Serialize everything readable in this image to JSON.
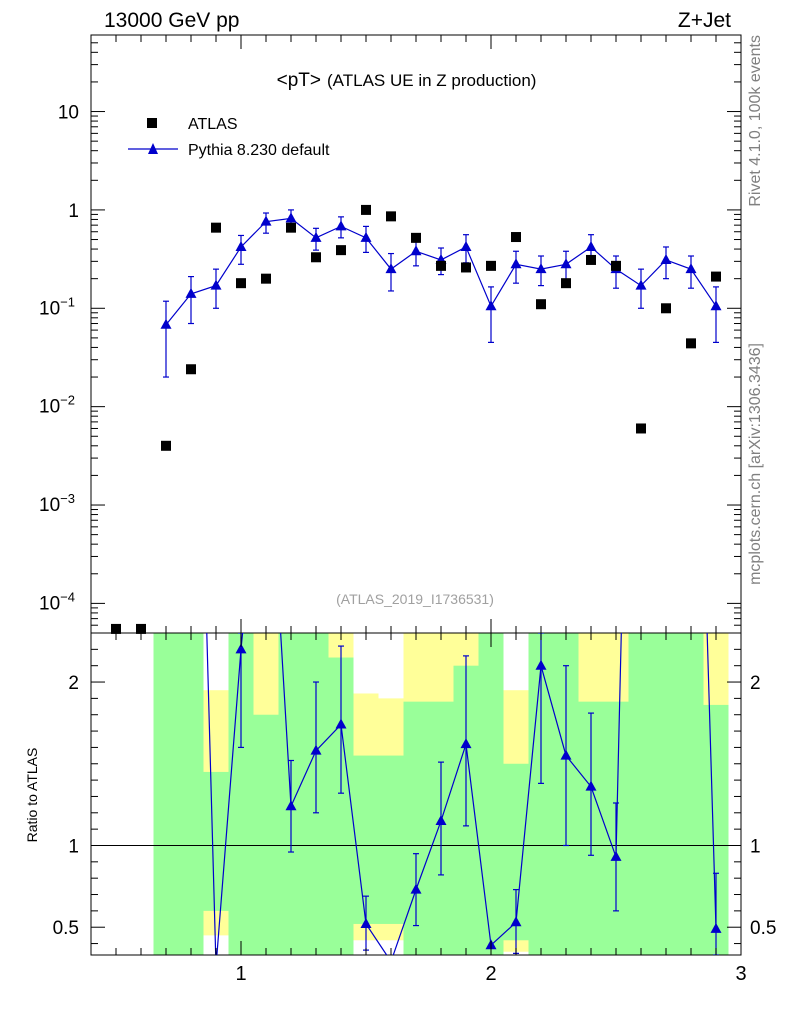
{
  "chart_data": {
    "type": "scatter",
    "header_left": "13000 GeV pp",
    "header_right": "Z+Jet",
    "title_main": "<pT>",
    "title_sub": "(ATLAS UE in Z production)",
    "analysis_id": "(ATLAS_2019_I1736531)",
    "side_label_top": "Rivet 4.1.0,  100k events",
    "side_label_bottom": "mcplots.cern.ch [arXiv:1306.3436]",
    "ratio_ylabel": "Ratio to ATLAS",
    "legend": {
      "data_label": "ATLAS",
      "mc_label": "Pythia 8.230 default",
      "placement": "top-left"
    },
    "main": {
      "yscale": "log",
      "ylim": [
        5e-05,
        60
      ],
      "yticks": [
        {
          "value": 10,
          "base": "10",
          "exp": ""
        },
        {
          "value": 1,
          "base": "1",
          "exp": ""
        },
        {
          "value": 0.1,
          "base": "10",
          "exp": "−1"
        },
        {
          "value": 0.01,
          "base": "10",
          "exp": "−2"
        },
        {
          "value": 0.001,
          "base": "10",
          "exp": "−3"
        },
        {
          "value": 0.0001,
          "base": "10",
          "exp": "−4"
        }
      ]
    },
    "xlim": [
      0.4,
      3.0
    ],
    "xticks": [
      {
        "value": 1,
        "label": "1"
      },
      {
        "value": 2,
        "label": "2"
      },
      {
        "value": 3,
        "label": "3"
      }
    ],
    "ratio": {
      "ylim": [
        0.33,
        2.3
      ],
      "yticks": [
        {
          "value": 0.5,
          "label": "0.5"
        },
        {
          "value": 1,
          "label": "1"
        },
        {
          "value": 2,
          "label": "2"
        }
      ],
      "reference": 1
    },
    "series": [
      {
        "name": "ATLAS",
        "x": [
          0.5,
          0.6,
          0.7,
          0.8,
          0.9,
          1.0,
          1.1,
          1.2,
          1.3,
          1.4,
          1.5,
          1.6,
          1.7,
          1.8,
          1.9,
          2.0,
          2.1,
          2.2,
          2.3,
          2.4,
          2.5,
          2.6,
          2.7,
          2.8,
          2.9
        ],
        "y": [
          5.5e-05,
          5.5e-05,
          0.004,
          0.024,
          0.66,
          0.18,
          0.2,
          0.66,
          0.33,
          0.39,
          1.0,
          0.86,
          0.52,
          0.27,
          0.26,
          0.27,
          0.53,
          0.11,
          0.18,
          0.31,
          0.27,
          0.006,
          0.1,
          0.044,
          0.21
        ]
      },
      {
        "name": "Pythia 8.230 default",
        "x": [
          0.7,
          0.8,
          0.9,
          1.0,
          1.1,
          1.2,
          1.3,
          1.4,
          1.5,
          1.6,
          1.7,
          1.8,
          1.9,
          2.0,
          2.1,
          2.2,
          2.3,
          2.4,
          2.5,
          2.6,
          2.7,
          2.8,
          2.9
        ],
        "y": [
          0.068,
          0.14,
          0.17,
          0.42,
          0.76,
          0.82,
          0.52,
          0.68,
          0.52,
          0.25,
          0.38,
          0.31,
          0.42,
          0.105,
          0.28,
          0.25,
          0.28,
          0.42,
          0.25,
          0.17,
          0.31,
          0.25,
          0.105
        ],
        "err_low": [
          0.048,
          0.07,
          0.07,
          0.14,
          0.18,
          0.18,
          0.13,
          0.16,
          0.15,
          0.1,
          0.11,
          0.09,
          0.13,
          0.06,
          0.1,
          0.08,
          0.09,
          0.13,
          0.09,
          0.07,
          0.11,
          0.09,
          0.06
        ],
        "err_high": [
          0.05,
          0.07,
          0.08,
          0.13,
          0.17,
          0.18,
          0.13,
          0.17,
          0.16,
          0.11,
          0.12,
          0.1,
          0.14,
          0.06,
          0.1,
          0.09,
          0.1,
          0.14,
          0.09,
          0.08,
          0.11,
          0.09,
          0.06
        ]
      }
    ],
    "ratio_series": {
      "name": "Pythia 8.230 default / ATLAS",
      "points": [
        {
          "x": 0.7,
          "y": 17
        },
        {
          "x": 0.8,
          "y": 5.8
        },
        {
          "x": 0.9,
          "y": 0.26
        },
        {
          "x": 1.0,
          "y": 2.2,
          "lo": 0.6,
          "hi": 0.6
        },
        {
          "x": 1.1,
          "y": 3.8
        },
        {
          "x": 1.2,
          "y": 1.24,
          "lo": 0.28,
          "hi": 0.28
        },
        {
          "x": 1.3,
          "y": 1.58,
          "lo": 0.38,
          "hi": 0.42
        },
        {
          "x": 1.4,
          "y": 1.74,
          "lo": 0.42,
          "hi": 0.48
        },
        {
          "x": 1.5,
          "y": 0.52,
          "lo": 0.16,
          "hi": 0.17
        },
        {
          "x": 1.6,
          "y": 0.29
        },
        {
          "x": 1.7,
          "y": 0.73,
          "lo": 0.22,
          "hi": 0.22
        },
        {
          "x": 1.8,
          "y": 1.15,
          "lo": 0.33,
          "hi": 0.36
        },
        {
          "x": 1.9,
          "y": 1.62,
          "lo": 0.5,
          "hi": 0.54
        },
        {
          "x": 2.0,
          "y": 0.39
        },
        {
          "x": 2.1,
          "y": 0.53,
          "lo": 0.19,
          "hi": 0.2
        },
        {
          "x": 2.2,
          "y": 2.1,
          "lo": 0.72,
          "hi": 0.8
        },
        {
          "x": 2.3,
          "y": 1.55,
          "lo": 0.55,
          "hi": 0.55
        },
        {
          "x": 2.4,
          "y": 1.36,
          "lo": 0.42,
          "hi": 0.45
        },
        {
          "x": 2.5,
          "y": 0.93,
          "lo": 0.33,
          "hi": 0.33
        },
        {
          "x": 2.6,
          "y": 28
        },
        {
          "x": 2.7,
          "y": 3.1
        },
        {
          "x": 2.8,
          "y": 5.6
        },
        {
          "x": 2.9,
          "y": 0.49,
          "lo": 0.33,
          "hi": 0.34
        }
      ]
    },
    "uncertainty_bands": {
      "bins": [
        {
          "lo": 0.65,
          "hi": 0.75,
          "green": [
            0.2,
            3.0
          ],
          "yellow": [
            0.2,
            3.0
          ]
        },
        {
          "lo": 0.75,
          "hi": 0.85,
          "green": [
            0.2,
            3.0
          ],
          "yellow": [
            0.2,
            3.0
          ]
        },
        {
          "lo": 0.85,
          "hi": 0.95,
          "green": [
            0.6,
            1.45
          ],
          "yellow": [
            0.45,
            1.95
          ]
        },
        {
          "lo": 0.95,
          "hi": 1.05,
          "green": [
            0.2,
            3.0
          ],
          "yellow": [
            0.2,
            3.0
          ]
        },
        {
          "lo": 1.05,
          "hi": 1.15,
          "green": [
            0.2,
            1.8
          ],
          "yellow": [
            0.2,
            3.0
          ]
        },
        {
          "lo": 1.15,
          "hi": 1.25,
          "green": [
            0.2,
            3.0
          ],
          "yellow": [
            0.2,
            3.0
          ]
        },
        {
          "lo": 1.25,
          "hi": 1.35,
          "green": [
            0.2,
            2.3
          ],
          "yellow": [
            0.2,
            3.0
          ]
        },
        {
          "lo": 1.35,
          "hi": 1.45,
          "green": [
            0.2,
            2.15
          ],
          "yellow": [
            0.2,
            3.0
          ]
        },
        {
          "lo": 1.45,
          "hi": 1.55,
          "green": [
            0.52,
            1.55
          ],
          "yellow": [
            0.42,
            1.93
          ]
        },
        {
          "lo": 1.55,
          "hi": 1.65,
          "green": [
            0.52,
            1.55
          ],
          "yellow": [
            0.42,
            1.9
          ]
        },
        {
          "lo": 1.65,
          "hi": 1.75,
          "green": [
            0.2,
            1.88
          ],
          "yellow": [
            0.2,
            3.0
          ]
        },
        {
          "lo": 1.75,
          "hi": 1.85,
          "green": [
            0.2,
            1.88
          ],
          "yellow": [
            0.2,
            3.0
          ]
        },
        {
          "lo": 1.85,
          "hi": 1.95,
          "green": [
            0.2,
            2.1
          ],
          "yellow": [
            0.2,
            3.0
          ]
        },
        {
          "lo": 1.95,
          "hi": 2.05,
          "green": [
            0.2,
            3.0
          ],
          "yellow": [
            0.2,
            3.0
          ]
        },
        {
          "lo": 2.05,
          "hi": 2.15,
          "green": [
            0.42,
            1.5
          ],
          "yellow": [
            0.35,
            1.95
          ]
        },
        {
          "lo": 2.15,
          "hi": 2.25,
          "green": [
            0.2,
            3.0
          ],
          "yellow": [
            0.2,
            3.0
          ]
        },
        {
          "lo": 2.25,
          "hi": 2.35,
          "green": [
            0.2,
            3.0
          ],
          "yellow": [
            0.2,
            3.0
          ]
        },
        {
          "lo": 2.35,
          "hi": 2.45,
          "green": [
            0.2,
            1.88
          ],
          "yellow": [
            0.2,
            3.0
          ]
        },
        {
          "lo": 2.45,
          "hi": 2.55,
          "green": [
            0.2,
            1.88
          ],
          "yellow": [
            0.2,
            3.0
          ]
        },
        {
          "lo": 2.55,
          "hi": 2.65,
          "green": [
            0.2,
            3.0
          ],
          "yellow": [
            0.2,
            3.0
          ]
        },
        {
          "lo": 2.65,
          "hi": 2.75,
          "green": [
            0.2,
            3.0
          ],
          "yellow": [
            0.2,
            3.0
          ]
        },
        {
          "lo": 2.75,
          "hi": 2.85,
          "green": [
            0.2,
            3.0
          ],
          "yellow": [
            0.2,
            3.0
          ]
        },
        {
          "lo": 2.85,
          "hi": 2.95,
          "green": [
            0.2,
            1.86
          ],
          "yellow": [
            0.2,
            3.0
          ]
        }
      ]
    },
    "colors": {
      "data": "#000000",
      "mc": "#0000cc",
      "band_green": "#99ff99",
      "band_yellow": "#ffff99",
      "side_text": "#808080",
      "analysis_text": "#a0a0a0"
    }
  }
}
